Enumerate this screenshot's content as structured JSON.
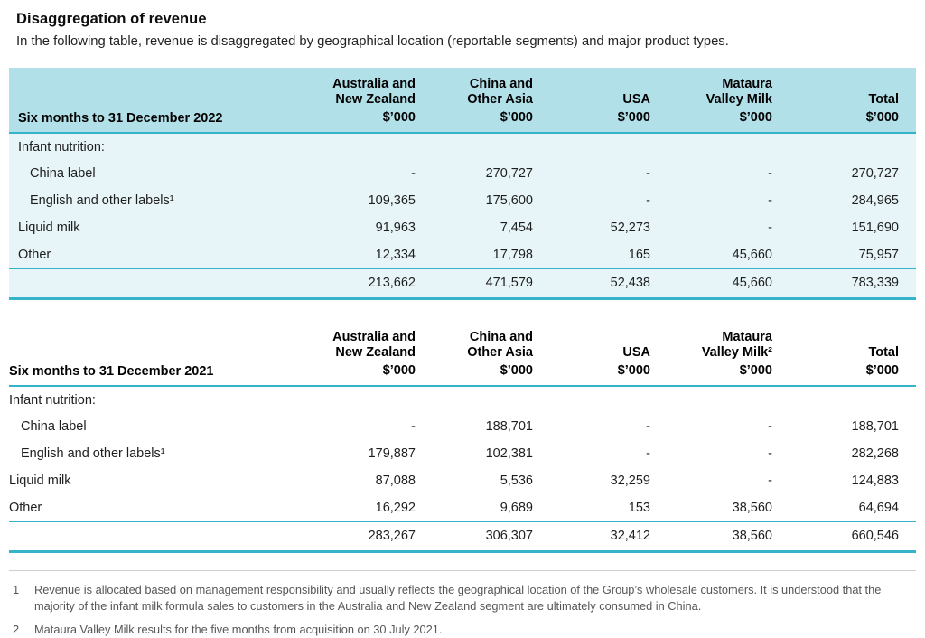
{
  "page": {
    "title": "Disaggregation of revenue",
    "intro": "In the following table, revenue is disaggregated by geographical location (reportable segments) and major product types."
  },
  "colors": {
    "header_bg": "#b2e0e9",
    "body_tint": "#e7f5f8",
    "rule": "#35b3c8"
  },
  "tables": [
    {
      "period_label": "Six months to 31 December 2022",
      "columns": [
        {
          "name": "Australia and\nNew Zealand",
          "unit": "$’000"
        },
        {
          "name": "China and\nOther Asia",
          "unit": "$’000"
        },
        {
          "name": "USA",
          "unit": "$’000"
        },
        {
          "name": "Mataura\nValley Milk",
          "unit": "$’000"
        },
        {
          "name": "Total",
          "unit": "$’000"
        }
      ],
      "rows": [
        {
          "label": "Infant nutrition:",
          "indent": false,
          "values": [
            "",
            "",
            "",
            "",
            ""
          ]
        },
        {
          "label": "China label",
          "indent": true,
          "values": [
            "-",
            "270,727",
            "-",
            "-",
            "270,727"
          ]
        },
        {
          "label": "English and other labels¹",
          "indent": true,
          "values": [
            "109,365",
            "175,600",
            "-",
            "-",
            "284,965"
          ]
        },
        {
          "label": "Liquid milk",
          "indent": false,
          "values": [
            "91,963",
            "7,454",
            "52,273",
            "-",
            "151,690"
          ]
        },
        {
          "label": "Other",
          "indent": false,
          "values": [
            "12,334",
            "17,798",
            "165",
            "45,660",
            "75,957"
          ]
        }
      ],
      "total_row": [
        "213,662",
        "471,579",
        "52,438",
        "45,660",
        "783,339"
      ]
    },
    {
      "period_label": "Six months to 31 December 2021",
      "columns": [
        {
          "name": "Australia and\nNew Zealand",
          "unit": "$’000"
        },
        {
          "name": "China and\nOther Asia",
          "unit": "$’000"
        },
        {
          "name": "USA",
          "unit": "$’000"
        },
        {
          "name": "Mataura\nValley Milk²",
          "unit": "$’000"
        },
        {
          "name": "Total",
          "unit": "$’000"
        }
      ],
      "rows": [
        {
          "label": "Infant nutrition:",
          "indent": false,
          "values": [
            "",
            "",
            "",
            "",
            ""
          ]
        },
        {
          "label": "China label",
          "indent": true,
          "values": [
            "-",
            "188,701",
            "-",
            "-",
            "188,701"
          ]
        },
        {
          "label": "English and other labels¹",
          "indent": true,
          "values": [
            "179,887",
            "102,381",
            "-",
            "-",
            "282,268"
          ]
        },
        {
          "label": "Liquid milk",
          "indent": false,
          "values": [
            "87,088",
            "5,536",
            "32,259",
            "-",
            "124,883"
          ]
        },
        {
          "label": "Other",
          "indent": false,
          "values": [
            "16,292",
            "9,689",
            "153",
            "38,560",
            "64,694"
          ]
        }
      ],
      "total_row": [
        "283,267",
        "306,307",
        "32,412",
        "38,560",
        "660,546"
      ]
    }
  ],
  "footnotes": [
    {
      "marker": "1",
      "text": "Revenue is allocated based on management responsibility and usually reflects the geographical location of the Group’s wholesale customers. It is understood that the majority of the infant milk formula sales to customers in the Australia and New Zealand segment are ultimately consumed in China."
    },
    {
      "marker": "2",
      "text": "Mataura Valley Milk results for the five months from acquisition on 30 July 2021."
    }
  ]
}
